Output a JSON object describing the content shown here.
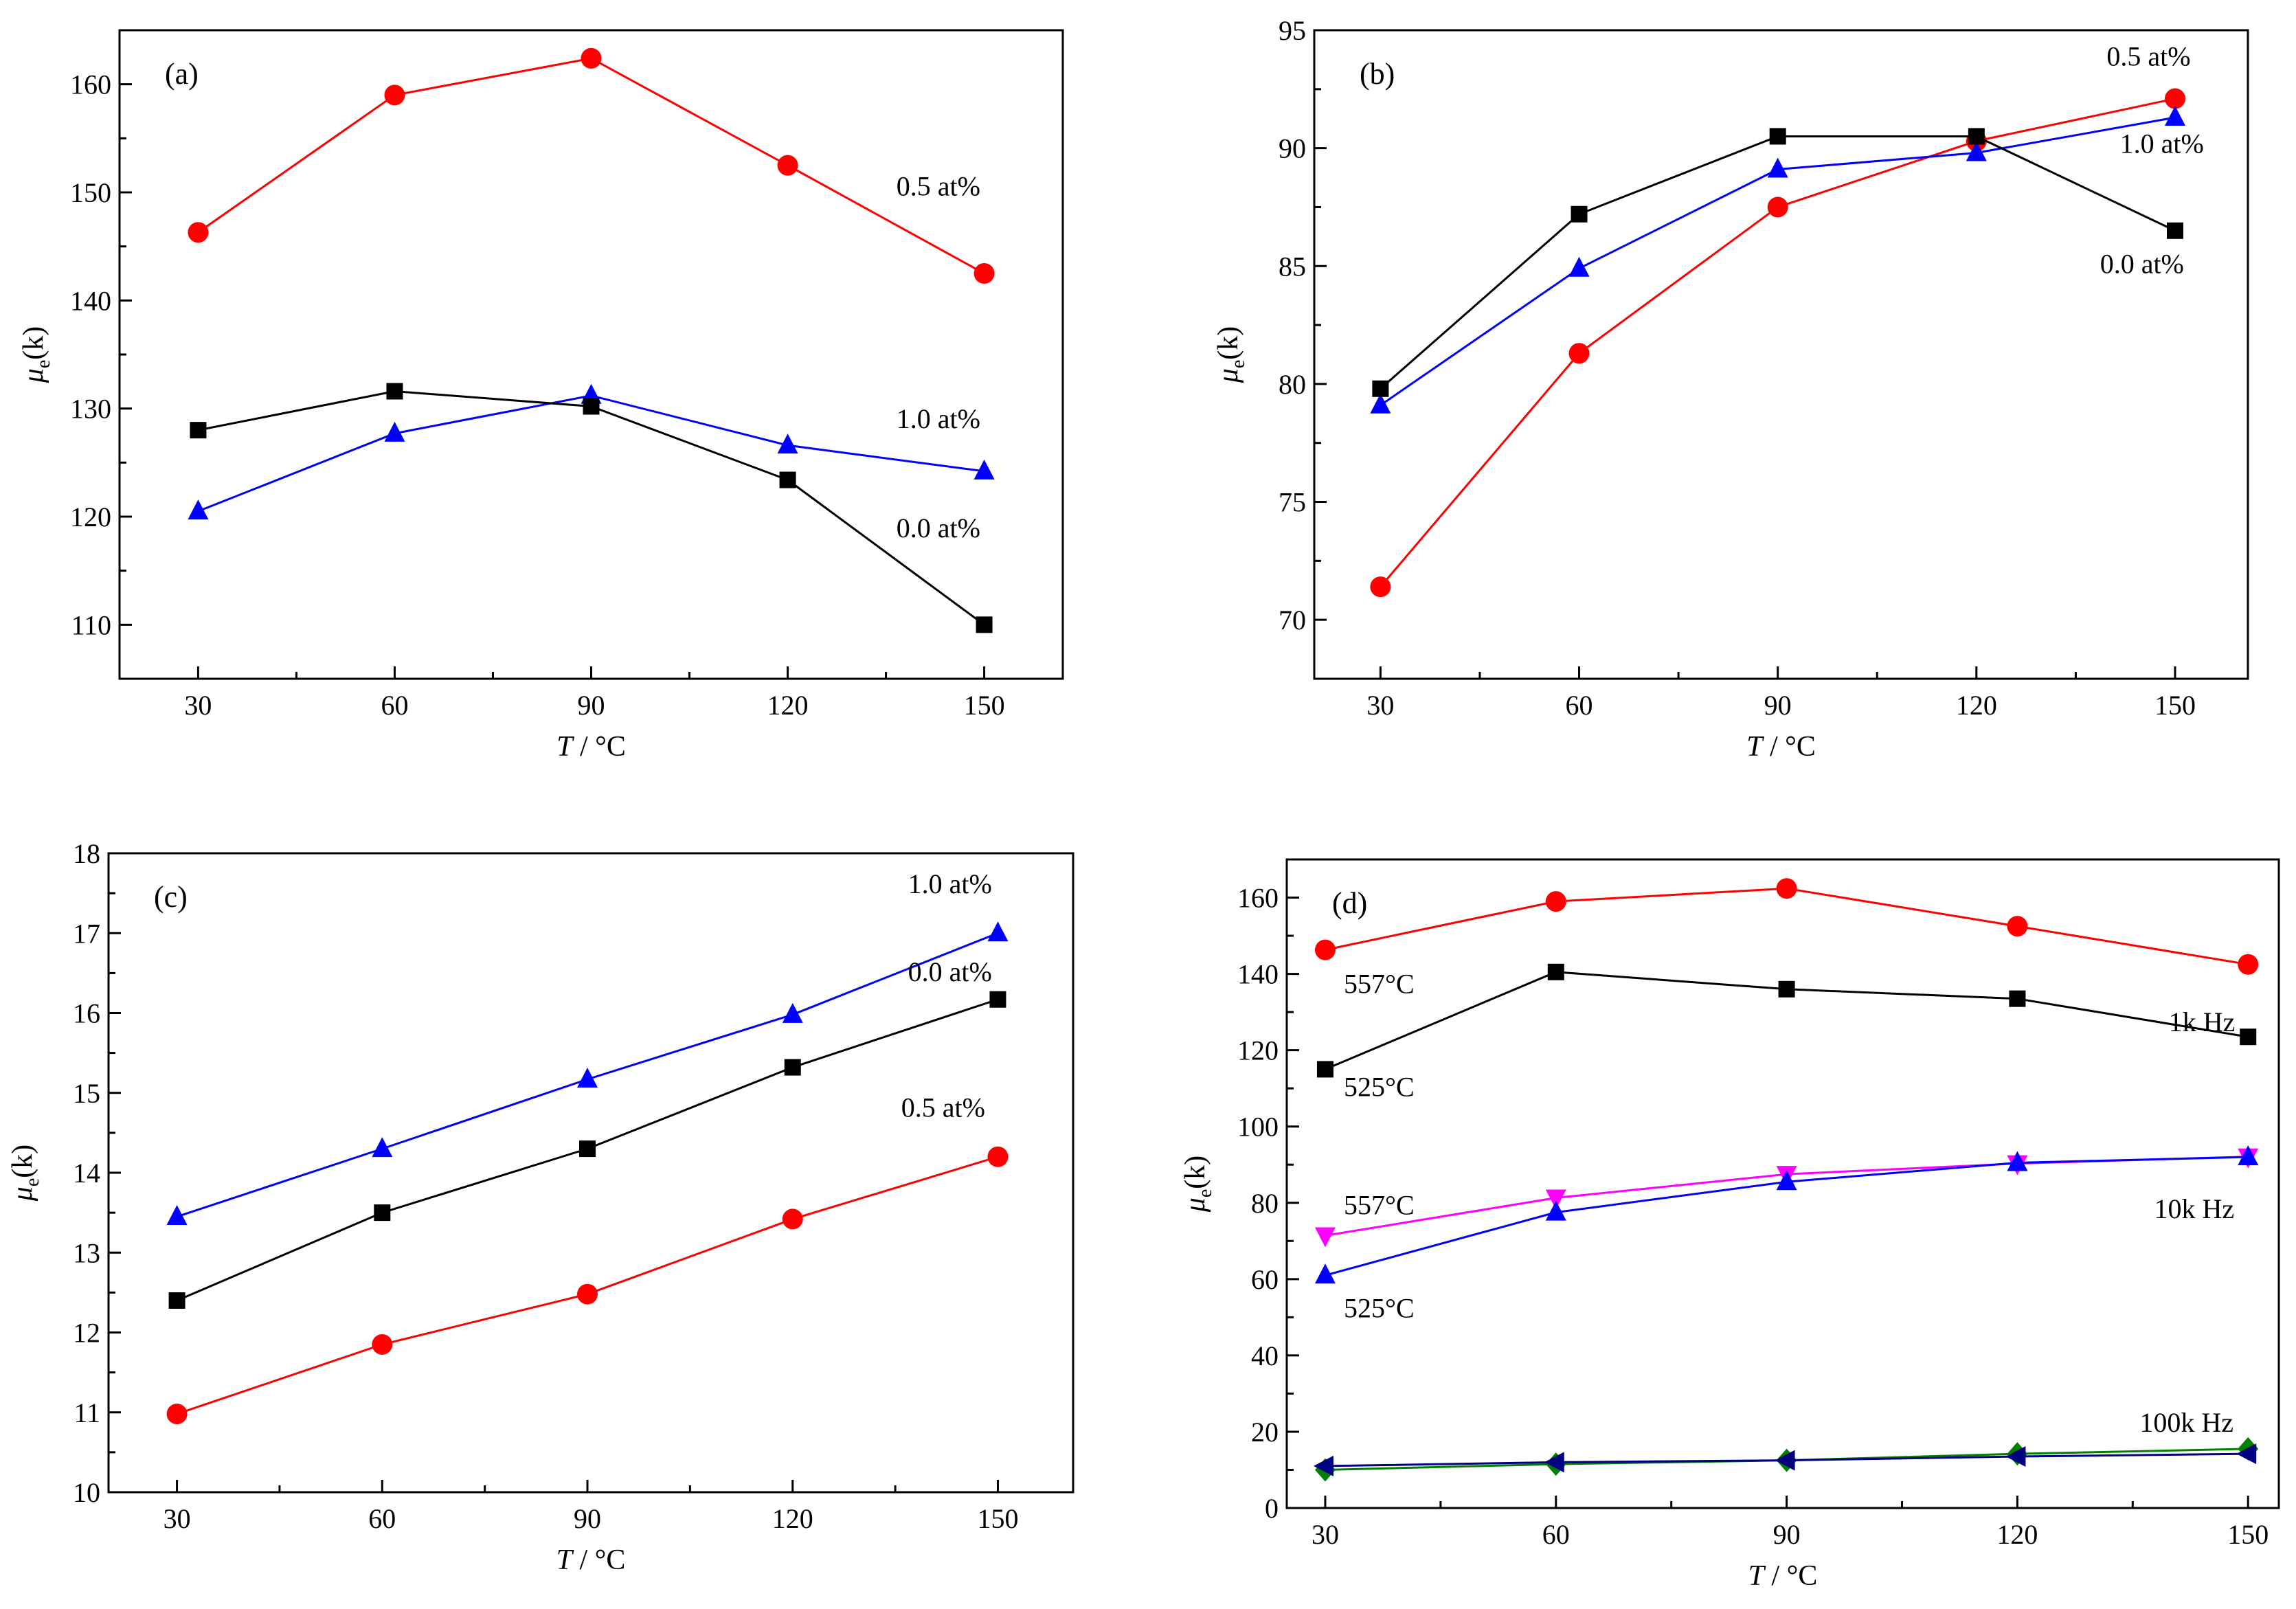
{
  "figure_title": "",
  "chart_data": [
    {
      "panel": "(a)",
      "type": "line",
      "x": [
        30,
        60,
        90,
        120,
        150
      ],
      "xlim": [
        18,
        162
      ],
      "ylim": [
        105,
        165
      ],
      "xticks": [
        30,
        60,
        90,
        120,
        150
      ],
      "yticks": [
        110,
        120,
        130,
        140,
        150,
        160
      ],
      "xlabel_italic": "T",
      "xlabel_unit": "/ °C",
      "ylabel_mu": "μ",
      "ylabel_sub": "e",
      "ylabel_rest": "(k)",
      "series": [
        {
          "name": "0.5 at%",
          "marker": "circle",
          "color": "#ff0000",
          "values": [
            146.3,
            159.0,
            162.4,
            152.5,
            142.5
          ]
        },
        {
          "name": "1.0 at%",
          "marker": "triangle",
          "color": "#0000ff",
          "values": [
            120.5,
            127.7,
            131.2,
            126.6,
            124.2
          ]
        },
        {
          "name": "0.0 at%",
          "marker": "square",
          "color": "#000000",
          "values": [
            128.0,
            131.6,
            130.2,
            123.4,
            110.0
          ]
        }
      ],
      "annotations": [
        {
          "text": "0.5 at%",
          "x": 143,
          "y": 149.7
        },
        {
          "text": "1.0 at%",
          "x": 143,
          "y": 128.2
        },
        {
          "text": "0.0 at%",
          "x": 143,
          "y": 118.1
        }
      ]
    },
    {
      "panel": "(b)",
      "type": "line",
      "x": [
        30,
        60,
        90,
        120,
        150
      ],
      "xlim": [
        20,
        161
      ],
      "ylim": [
        67.5,
        95
      ],
      "xticks": [
        30,
        60,
        90,
        120,
        150
      ],
      "yticks": [
        70,
        75,
        80,
        85,
        90,
        95
      ],
      "xlabel_italic": "T",
      "xlabel_unit": "/ °C",
      "ylabel_mu": "μ",
      "ylabel_sub": "e",
      "ylabel_rest": "(k)",
      "series": [
        {
          "name": "0.5 at%",
          "marker": "circle",
          "color": "#ff0000",
          "values": [
            71.4,
            81.3,
            87.5,
            90.3,
            92.1
          ]
        },
        {
          "name": "1.0 at%",
          "marker": "triangle",
          "color": "#0000ff",
          "values": [
            79.1,
            84.9,
            89.1,
            89.8,
            91.3
          ]
        },
        {
          "name": "0.0 at%",
          "marker": "square",
          "color": "#000000",
          "values": [
            79.8,
            87.2,
            90.5,
            90.5,
            86.5
          ]
        }
      ],
      "annotations": [
        {
          "text": "0.5 at%",
          "x": 146,
          "y": 93.5
        },
        {
          "text": "1.0 at%",
          "x": 148,
          "y": 89.8
        },
        {
          "text": "0.0 at%",
          "x": 145,
          "y": 84.7
        }
      ]
    },
    {
      "panel": "(c)",
      "type": "line",
      "x": [
        30,
        60,
        90,
        120,
        150
      ],
      "xlim": [
        20,
        161
      ],
      "ylim": [
        10,
        18
      ],
      "xticks": [
        30,
        60,
        90,
        120,
        150
      ],
      "yticks": [
        10,
        11,
        12,
        13,
        14,
        15,
        16,
        17,
        18
      ],
      "xlabel_italic": "T",
      "xlabel_unit": "/ °C",
      "ylabel_mu": "μ",
      "ylabel_sub": "e",
      "ylabel_rest": "(k)",
      "series": [
        {
          "name": "1.0 at%",
          "marker": "triangle",
          "color": "#0000ff",
          "values": [
            13.45,
            14.3,
            15.17,
            15.98,
            17.0
          ]
        },
        {
          "name": "0.0 at%",
          "marker": "square",
          "color": "#000000",
          "values": [
            12.4,
            13.5,
            14.3,
            15.32,
            16.17
          ]
        },
        {
          "name": "0.5 at%",
          "marker": "circle",
          "color": "#ff0000",
          "values": [
            10.98,
            11.85,
            12.48,
            13.42,
            14.2
          ]
        }
      ],
      "annotations": [
        {
          "text": "1.0 at%",
          "x": 143,
          "y": 17.5
        },
        {
          "text": "0.0 at%",
          "x": 143,
          "y": 16.4
        },
        {
          "text": "0.5 at%",
          "x": 142,
          "y": 14.7
        }
      ]
    },
    {
      "panel": "(d)",
      "type": "line",
      "x": [
        30,
        60,
        90,
        120,
        150
      ],
      "xlim": [
        25,
        154
      ],
      "ylim": [
        0,
        170
      ],
      "xticks": [
        30,
        60,
        90,
        120,
        150
      ],
      "yticks": [
        0,
        20,
        40,
        60,
        80,
        100,
        120,
        140,
        160
      ],
      "xlabel_italic": "T",
      "xlabel_unit": "/ °C",
      "ylabel_mu": "μ",
      "ylabel_sub": "e",
      "ylabel_rest": "(k)",
      "series": [
        {
          "name": "557°C 1k Hz",
          "marker": "circle",
          "color": "#ff0000",
          "values": [
            146.3,
            159.0,
            162.4,
            152.5,
            142.5
          ]
        },
        {
          "name": "525°C 1k Hz",
          "marker": "square",
          "color": "#000000",
          "values": [
            115.0,
            140.5,
            136.0,
            133.5,
            123.5
          ]
        },
        {
          "name": "557°C 10k Hz",
          "marker": "triangle-down",
          "color": "#ff00ff",
          "values": [
            71.4,
            81.3,
            87.5,
            90.3,
            92.1
          ]
        },
        {
          "name": "525°C 10k Hz",
          "marker": "triangle",
          "color": "#0000ff",
          "values": [
            61.0,
            77.5,
            85.5,
            90.5,
            92.0
          ]
        },
        {
          "name": "557°C 100k Hz",
          "marker": "diamond",
          "color": "#008000",
          "values": [
            10.0,
            11.5,
            12.5,
            14.2,
            15.5
          ]
        },
        {
          "name": "525°C 100k Hz",
          "marker": "triangle-left",
          "color": "#000080",
          "values": [
            11.0,
            12.0,
            12.5,
            13.5,
            14.2
          ]
        }
      ],
      "annotations": [
        {
          "text": "557°C",
          "x": 37,
          "y": 135
        },
        {
          "text": "525°C",
          "x": 37,
          "y": 108
        },
        {
          "text": "1k Hz",
          "x": 144,
          "y": 125
        },
        {
          "text": "557°C",
          "x": 37,
          "y": 77
        },
        {
          "text": "525°C",
          "x": 37,
          "y": 50
        },
        {
          "text": "10k Hz",
          "x": 143,
          "y": 76
        },
        {
          "text": "100k Hz",
          "x": 142,
          "y": 20
        }
      ]
    }
  ]
}
